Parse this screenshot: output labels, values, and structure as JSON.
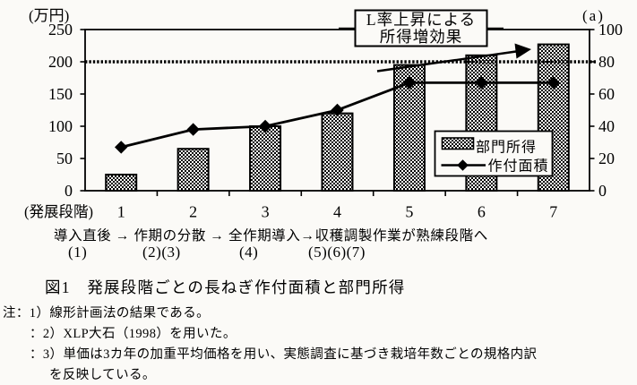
{
  "chart_data": {
    "type": "bar",
    "subtype": "bar+line combo",
    "title": "図1　発展段階ごとの長ねぎ作付面積と部門所得",
    "categories": [
      "1",
      "2",
      "3",
      "4",
      "5",
      "6",
      "7"
    ],
    "series": [
      {
        "name": "部門所得",
        "type": "bar",
        "axis": "left",
        "unit": "万円",
        "values": [
          25,
          65,
          100,
          120,
          195,
          210,
          227
        ]
      },
      {
        "name": "作付面積",
        "type": "line",
        "axis": "right",
        "unit": "a",
        "values": [
          27,
          38,
          40,
          50,
          67,
          67,
          67
        ]
      }
    ],
    "left_axis": {
      "unit_label": "(万円)",
      "range": [
        0,
        250
      ],
      "ticks": [
        0,
        50,
        100,
        150,
        200,
        250
      ]
    },
    "right_axis": {
      "unit_label": "(a)",
      "range": [
        0,
        100
      ],
      "ticks": [
        0,
        20,
        40,
        60,
        80,
        100
      ]
    },
    "x_axis": {
      "label": "(発展段階)"
    },
    "reference_line": {
      "axis": "left",
      "value": 200,
      "style": "thick-dotted"
    },
    "annotation_box": {
      "line1": "L率上昇による",
      "line2": "所得増効果"
    },
    "legend": {
      "position": "inside-right",
      "items": [
        "部門所得",
        "作付面積"
      ]
    },
    "grid": "off"
  },
  "stage_flow": {
    "row1": "導入直後 → 作期の分散 → 全作期導入→収穫調製作業が熟練段階へ",
    "groups": [
      "(1)",
      "(2)(3)",
      "(4)",
      "(5)(6)(7)"
    ]
  },
  "caption": "図1　発展段階ごとの長ねぎ作付面積と部門所得",
  "notes": {
    "line1": "注：1）線形計画法の結果である。",
    "line2": "：2）XLP大石（1998）を用いた。",
    "line3": "：3）単価は3カ年の加重平均価格を用い、実態調査に基づき栽培年数ごとの規格内訳",
    "line4": "を反映している。"
  }
}
